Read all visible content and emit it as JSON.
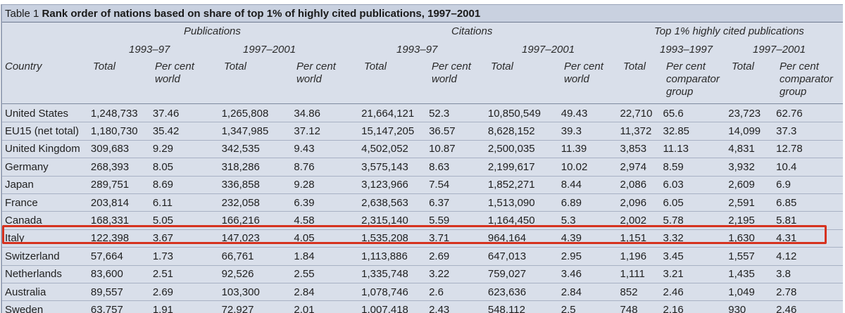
{
  "table": {
    "label": "Table 1",
    "title": "Rank order of nations based on share of top 1% of highly cited publications, 1997–2001",
    "groups": {
      "publications": "Publications",
      "citations": "Citations",
      "top1": "Top 1% highly cited publications"
    },
    "periods": {
      "pub_a": "1993–97",
      "pub_b": "1997–2001",
      "cit_a": "1993–97",
      "cit_b": "1997–2001",
      "top_a": "1993–1997",
      "top_b": "1997–2001"
    },
    "col_headers": {
      "country": "Country",
      "total": "Total",
      "pct_world_1": "Per cent",
      "pct_world_2": "world",
      "pct_comp_1": "Per cent",
      "pct_comp_2": "comparator",
      "pct_comp_3": "group"
    },
    "rows": [
      [
        "United States",
        "1,248,733",
        "37.46",
        "1,265,808",
        "34.86",
        "21,664,121",
        "52.3",
        "10,850,549",
        "49.43",
        "22,710",
        "65.6",
        "23,723",
        "62.76"
      ],
      [
        "EU15 (net total)",
        "1,180,730",
        "35.42",
        "1,347,985",
        "37.12",
        "15,147,205",
        "36.57",
        "8,628,152",
        "39.3",
        "11,372",
        "32.85",
        "14,099",
        "37.3"
      ],
      [
        "United Kingdom",
        "309,683",
        "9.29",
        "342,535",
        "9.43",
        "4,502,052",
        "10.87",
        "2,500,035",
        "11.39",
        "3,853",
        "11.13",
        "4,831",
        "12.78"
      ],
      [
        "Germany",
        "268,393",
        "8.05",
        "318,286",
        "8.76",
        "3,575,143",
        "8.63",
        "2,199,617",
        "10.02",
        "2,974",
        "8.59",
        "3,932",
        "10.4"
      ],
      [
        "Japan",
        "289,751",
        "8.69",
        "336,858",
        "9.28",
        "3,123,966",
        "7.54",
        "1,852,271",
        "8.44",
        "2,086",
        "6.03",
        "2,609",
        "6.9"
      ],
      [
        "France",
        "203,814",
        "6.11",
        "232,058",
        "6.39",
        "2,638,563",
        "6.37",
        "1,513,090",
        "6.89",
        "2,096",
        "6.05",
        "2,591",
        "6.85"
      ],
      [
        "Canada",
        "168,331",
        "5.05",
        "166,216",
        "4.58",
        "2,315,140",
        "5.59",
        "1,164,450",
        "5.3",
        "2,002",
        "5.78",
        "2,195",
        "5.81"
      ],
      [
        "Italy",
        "122,398",
        "3.67",
        "147,023",
        "4.05",
        "1,535,208",
        "3.71",
        "964,164",
        "4.39",
        "1,151",
        "3.32",
        "1,630",
        "4.31"
      ],
      [
        "Switzerland",
        "57,664",
        "1.73",
        "66,761",
        "1.84",
        "1,113,886",
        "2.69",
        "647,013",
        "2.95",
        "1,196",
        "3.45",
        "1,557",
        "4.12"
      ],
      [
        "Netherlands",
        "83,600",
        "2.51",
        "92,526",
        "2.55",
        "1,335,748",
        "3.22",
        "759,027",
        "3.46",
        "1,111",
        "3.21",
        "1,435",
        "3.8"
      ],
      [
        "Australia",
        "89,557",
        "2.69",
        "103,300",
        "2.84",
        "1,078,746",
        "2.6",
        "623,636",
        "2.84",
        "852",
        "2.46",
        "1,049",
        "2.78"
      ],
      [
        "Sweden",
        "63,757",
        "1.91",
        "72,927",
        "2.01",
        "1,007,418",
        "2.43",
        "548,112",
        "2.5",
        "748",
        "2.16",
        "930",
        "2.46"
      ]
    ],
    "highlighted_row": "Italy",
    "highlight_color": "#d6321f",
    "table_bg": "#d9dfea"
  }
}
